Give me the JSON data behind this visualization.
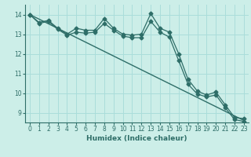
{
  "title": "",
  "xlabel": "Humidex (Indice chaleur)",
  "ylabel": "",
  "bg_color": "#cceee8",
  "line_color": "#2e6e68",
  "grid_color": "#aaddda",
  "xlim": [
    -0.5,
    23.5
  ],
  "ylim": [
    8.5,
    14.5
  ],
  "xticks": [
    0,
    1,
    2,
    3,
    4,
    5,
    6,
    7,
    8,
    9,
    10,
    11,
    12,
    13,
    14,
    15,
    16,
    17,
    18,
    19,
    20,
    21,
    22,
    23
  ],
  "yticks": [
    9,
    10,
    11,
    12,
    13,
    14
  ],
  "line1_x": [
    0,
    1,
    2,
    3,
    4,
    5,
    6,
    7,
    8,
    9,
    10,
    11,
    12,
    13,
    14,
    15,
    16,
    17,
    18,
    19,
    20,
    21,
    22,
    23
  ],
  "line1_y": [
    14.0,
    13.6,
    13.7,
    13.3,
    13.0,
    13.3,
    13.2,
    13.2,
    13.8,
    13.3,
    13.0,
    12.95,
    13.0,
    14.05,
    13.3,
    13.1,
    12.0,
    10.7,
    10.1,
    9.9,
    10.05,
    9.4,
    8.75,
    8.7
  ],
  "line2_x": [
    0,
    1,
    2,
    3,
    4,
    5,
    6,
    7,
    8,
    9,
    10,
    11,
    12,
    13,
    14,
    15,
    16,
    17,
    18,
    19,
    20,
    21,
    22,
    23
  ],
  "line2_y": [
    14.0,
    13.55,
    13.65,
    13.25,
    12.95,
    13.1,
    13.05,
    13.1,
    13.55,
    13.2,
    12.9,
    12.82,
    12.82,
    13.65,
    13.1,
    12.85,
    11.65,
    10.45,
    9.95,
    9.8,
    9.9,
    9.25,
    8.65,
    8.55
  ],
  "line3_x": [
    0,
    23
  ],
  "line3_y": [
    14.0,
    8.6
  ]
}
